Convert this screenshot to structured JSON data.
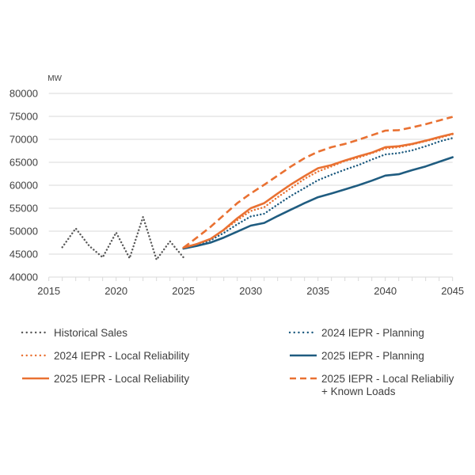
{
  "chart_data": {
    "type": "line",
    "title": "",
    "xlabel": "",
    "ylabel": "MW",
    "xlim": [
      2015,
      2045
    ],
    "ylim": [
      40000,
      80000
    ],
    "x_ticks": [
      2015,
      2020,
      2025,
      2030,
      2035,
      2040,
      2045
    ],
    "x_tick_labels": [
      "2015",
      "2020",
      "2025",
      "2030",
      "2035",
      "2040",
      "2045"
    ],
    "y_ticks": [
      40000,
      45000,
      50000,
      55000,
      60000,
      65000,
      70000,
      75000,
      80000
    ],
    "y_tick_labels": [
      "40000",
      "45000",
      "50000",
      "55000",
      "60000",
      "65000",
      "70000",
      "75000",
      "80000"
    ],
    "grid": "horizontal",
    "legend_position": "bottom",
    "series": [
      {
        "name": "Historical Sales",
        "color": "#595959",
        "style": "dotted",
        "x": [
          2016,
          2017,
          2018,
          2019,
          2020,
          2021,
          2022,
          2023,
          2024,
          2025
        ],
        "values": [
          46500,
          50600,
          46800,
          44300,
          49700,
          44100,
          53100,
          43800,
          47800,
          44300
        ]
      },
      {
        "name": "2024 IEPR - Planning",
        "color": "#1F5C80",
        "style": "dotted",
        "x": [
          2025,
          2026,
          2027,
          2028,
          2029,
          2030,
          2031,
          2032,
          2033,
          2034,
          2035,
          2036,
          2037,
          2038,
          2039,
          2040,
          2041,
          2042,
          2043,
          2044,
          2045
        ],
        "values": [
          46300,
          47000,
          48000,
          49600,
          51500,
          53200,
          53800,
          55800,
          57700,
          59400,
          61100,
          62300,
          63400,
          64400,
          65600,
          66700,
          67000,
          67600,
          68500,
          69500,
          70300
        ]
      },
      {
        "name": "2024 IEPR - Local Reliability",
        "color": "#E97132",
        "style": "dotted",
        "x": [
          2025,
          2026,
          2027,
          2028,
          2029,
          2030,
          2031,
          2032,
          2033,
          2034,
          2035,
          2036,
          2037,
          2038,
          2039,
          2040,
          2041,
          2042,
          2043,
          2044,
          2045
        ],
        "values": [
          46400,
          47200,
          48300,
          50200,
          52400,
          54400,
          55200,
          57400,
          59400,
          61400,
          63000,
          64100,
          65300,
          66000,
          67000,
          68000,
          68300,
          68900,
          69600,
          70300,
          71100
        ]
      },
      {
        "name": "2025 IEPR - Planning",
        "color": "#1F5C80",
        "style": "solid",
        "x": [
          2025,
          2026,
          2027,
          2028,
          2029,
          2030,
          2031,
          2032,
          2033,
          2034,
          2035,
          2036,
          2037,
          2038,
          2039,
          2040,
          2041,
          2042,
          2043,
          2044,
          2045
        ],
        "values": [
          46200,
          46800,
          47500,
          48600,
          49900,
          51200,
          51800,
          53300,
          54700,
          56100,
          57400,
          58200,
          59100,
          60000,
          61000,
          62100,
          62400,
          63300,
          64100,
          65100,
          66100
        ]
      },
      {
        "name": "2025 IEPR - Local Reliability",
        "color": "#E97132",
        "style": "solid",
        "x": [
          2025,
          2026,
          2027,
          2028,
          2029,
          2030,
          2031,
          2032,
          2033,
          2034,
          2035,
          2036,
          2037,
          2038,
          2039,
          2040,
          2041,
          2042,
          2043,
          2044,
          2045
        ],
        "values": [
          46400,
          47200,
          48300,
          50300,
          52800,
          55000,
          56100,
          58200,
          60200,
          62000,
          63700,
          64400,
          65400,
          66300,
          67100,
          68300,
          68500,
          69000,
          69700,
          70500,
          71200
        ]
      },
      {
        "name": "2025 IEPR - Local Reliabiliy + Known Loads",
        "color": "#E97132",
        "style": "dashed",
        "x": [
          2025,
          2026,
          2027,
          2028,
          2029,
          2030,
          2031,
          2032,
          2033,
          2034,
          2035,
          2036,
          2037,
          2038,
          2039,
          2040,
          2041,
          2042,
          2043,
          2044,
          2045
        ],
        "values": [
          46400,
          48600,
          50900,
          53500,
          56100,
          58200,
          60100,
          62100,
          64100,
          65900,
          67300,
          68300,
          69000,
          69900,
          70900,
          71900,
          72000,
          72600,
          73300,
          74100,
          74900
        ]
      }
    ],
    "legend": [
      {
        "label": "Historical Sales",
        "series_index": 0,
        "column": 0,
        "row": 0
      },
      {
        "label": "2024 IEPR - Planning",
        "series_index": 1,
        "column": 1,
        "row": 0
      },
      {
        "label": "2024 IEPR - Local Reliability",
        "series_index": 2,
        "column": 0,
        "row": 1
      },
      {
        "label": "2025 IEPR - Planning",
        "series_index": 3,
        "column": 1,
        "row": 1
      },
      {
        "label": "2025 IEPR - Local Reliability",
        "series_index": 4,
        "column": 0,
        "row": 2
      },
      {
        "label_lines": [
          "2025 IEPR - Local Reliabiliy",
          "+ Known Loads"
        ],
        "label": "2025 IEPR - Local Reliabiliy + Known Loads",
        "series_index": 5,
        "column": 1,
        "row": 2
      }
    ]
  }
}
